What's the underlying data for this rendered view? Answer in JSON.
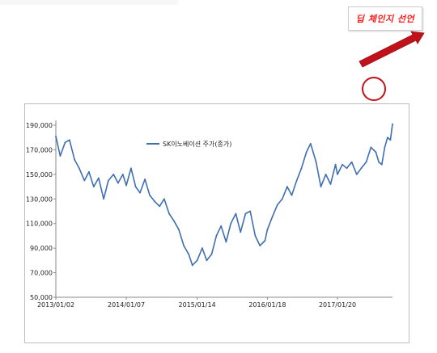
{
  "callout": {
    "text": "딥 체인지 선언"
  },
  "colors": {
    "line": "#3e6faf",
    "callout_text": "#ff1a1a",
    "arrow": "#c0121b",
    "circle": "#c0121b"
  },
  "chart_data": {
    "type": "line",
    "series": [
      {
        "name": "SK이노베이션 주가(종가)",
        "points": [
          [
            "2013/01/02",
            181000
          ],
          [
            "2013/01/25",
            165000
          ],
          [
            "2013/02/20",
            176000
          ],
          [
            "2013/03/15",
            178000
          ],
          [
            "2013/04/10",
            162000
          ],
          [
            "2013/05/05",
            155000
          ],
          [
            "2013/06/01",
            145000
          ],
          [
            "2013/06/25",
            152000
          ],
          [
            "2013/07/20",
            140000
          ],
          [
            "2013/08/15",
            147000
          ],
          [
            "2013/09/10",
            130000
          ],
          [
            "2013/10/05",
            145000
          ],
          [
            "2013/11/01",
            150000
          ],
          [
            "2013/11/25",
            143000
          ],
          [
            "2013/12/20",
            150000
          ],
          [
            "2014/01/07",
            141000
          ],
          [
            "2014/02/01",
            155000
          ],
          [
            "2014/02/25",
            140000
          ],
          [
            "2014/03/20",
            135000
          ],
          [
            "2014/04/15",
            146000
          ],
          [
            "2014/05/10",
            133000
          ],
          [
            "2014/06/05",
            128000
          ],
          [
            "2014/07/01",
            124000
          ],
          [
            "2014/07/25",
            130000
          ],
          [
            "2014/08/20",
            118000
          ],
          [
            "2014/09/15",
            112000
          ],
          [
            "2014/10/10",
            105000
          ],
          [
            "2014/11/05",
            92000
          ],
          [
            "2014/12/01",
            85000
          ],
          [
            "2014/12/20",
            76000
          ],
          [
            "2015/01/14",
            80000
          ],
          [
            "2015/02/10",
            90000
          ],
          [
            "2015/03/05",
            80000
          ],
          [
            "2015/03/31",
            85000
          ],
          [
            "2015/04/25",
            100000
          ],
          [
            "2015/05/20",
            108000
          ],
          [
            "2015/06/15",
            95000
          ],
          [
            "2015/07/10",
            110000
          ],
          [
            "2015/08/05",
            118000
          ],
          [
            "2015/08/30",
            103000
          ],
          [
            "2015/09/25",
            118000
          ],
          [
            "2015/10/20",
            120000
          ],
          [
            "2015/11/15",
            100000
          ],
          [
            "2015/12/10",
            92000
          ],
          [
            "2016/01/05",
            96000
          ],
          [
            "2016/01/18",
            105000
          ],
          [
            "2016/02/12",
            115000
          ],
          [
            "2016/03/10",
            125000
          ],
          [
            "2016/04/05",
            130000
          ],
          [
            "2016/05/01",
            140000
          ],
          [
            "2016/05/25",
            133000
          ],
          [
            "2016/06/20",
            145000
          ],
          [
            "2016/07/15",
            155000
          ],
          [
            "2016/08/10",
            168000
          ],
          [
            "2016/09/01",
            175000
          ],
          [
            "2016/09/30",
            160000
          ],
          [
            "2016/10/25",
            140000
          ],
          [
            "2016/11/20",
            150000
          ],
          [
            "2016/12/15",
            142000
          ],
          [
            "2017/01/10",
            158000
          ],
          [
            "2017/01/20",
            150000
          ],
          [
            "2017/02/15",
            158000
          ],
          [
            "2017/03/10",
            155000
          ],
          [
            "2017/04/05",
            160000
          ],
          [
            "2017/05/01",
            150000
          ],
          [
            "2017/05/25",
            155000
          ],
          [
            "2017/06/20",
            160000
          ],
          [
            "2017/07/15",
            172000
          ],
          [
            "2017/08/10",
            168000
          ],
          [
            "2017/08/25",
            160000
          ],
          [
            "2017/09/10",
            158000
          ],
          [
            "2017/09/25",
            172000
          ],
          [
            "2017/10/10",
            180000
          ],
          [
            "2017/10/25",
            178000
          ],
          [
            "2017/11/05",
            191000
          ]
        ]
      }
    ],
    "xticks": [
      "2013/01/02",
      "2014/01/07",
      "2015/01/14",
      "2016/01/18",
      "2017/01/20"
    ],
    "yticks": [
      "50,000",
      "70,000",
      "90,000",
      "110,000",
      "130,000",
      "150,000",
      "170,000",
      "190,000"
    ],
    "ylim": [
      50000,
      190000
    ],
    "xlim": [
      "2013/01/02",
      "2017/11/05"
    ],
    "grid": false,
    "legend": "top-center"
  }
}
